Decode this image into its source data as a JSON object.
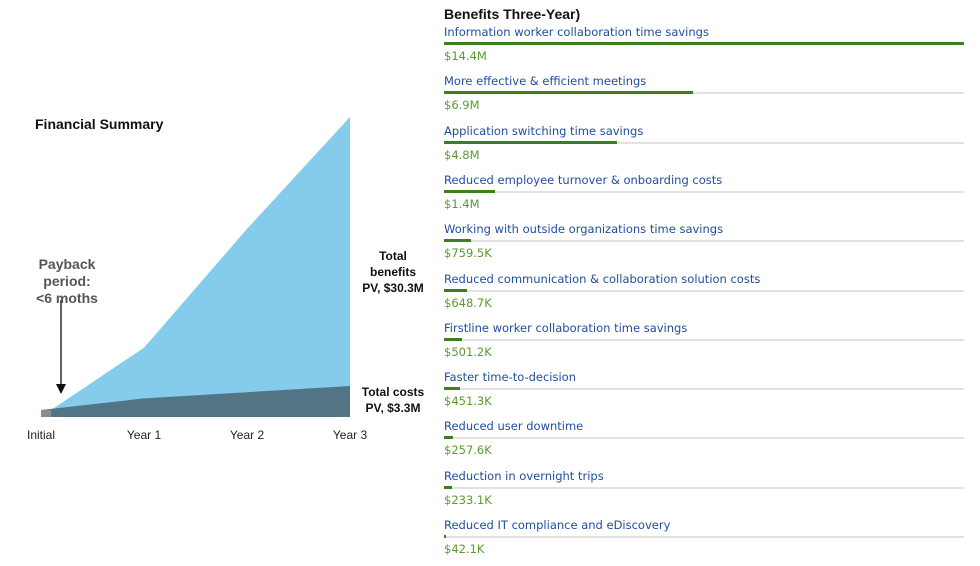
{
  "left_panel": {
    "title": "Financial Summary",
    "payback_line1": "Payback",
    "payback_line2": "period:",
    "payback_line3": "<6 moths",
    "benefits_line1": "Total",
    "benefits_line2": "benefits",
    "benefits_line3": "PV, $30.3M",
    "costs_line1": "Total costs",
    "costs_line2": "PV, $3.3M",
    "x_ticks": [
      "Initial",
      "Year 1",
      "Year 2",
      "Year 3"
    ],
    "colors": {
      "benefits": "#85CBEB",
      "costs": "#527485",
      "initial": "#8c8c8c"
    }
  },
  "right_panel": {
    "title": "Benefits Three-Year)",
    "bar_color": "#3F7E1F",
    "label_color": "#1F4E9C",
    "value_color": "#5B9A2E",
    "items": [
      {
        "label": "Information worker collaboration time savings",
        "value": "$14.4M"
      },
      {
        "label": "More effective & efficient meetings",
        "value": "$6.9M"
      },
      {
        "label": "Application switching time savings",
        "value": "$4.8M"
      },
      {
        "label": "Reduced employee turnover & onboarding costs",
        "value": "$1.4M"
      },
      {
        "label": "Working with outside organizations time savings",
        "value": "$759.5K"
      },
      {
        "label": "Reduced communication & collaboration solution costs",
        "value": "$648.7K"
      },
      {
        "label": "Firstline worker collaboration time savings",
        "value": "$501.2K"
      },
      {
        "label": "Faster time-to-decision",
        "value": "$451.3K"
      },
      {
        "label": "Reduced user downtime",
        "value": "$257.6K"
      },
      {
        "label": "Reduction in overnight trips",
        "value": "$233.1K"
      },
      {
        "label": "Reduced IT compliance and eDiscovery",
        "value": "$42.1K"
      }
    ]
  },
  "chart_data": [
    {
      "type": "area",
      "title": "Financial Summary",
      "categories": [
        "Initial",
        "Year 1",
        "Year 2",
        "Year 3"
      ],
      "series": [
        {
          "name": "Total benefits (cumulative)",
          "values": [
            0,
            7.0,
            19.0,
            30.3
          ]
        },
        {
          "name": "Total costs (cumulative)",
          "values": [
            0.2,
            1.7,
            2.5,
            3.3
          ]
        }
      ],
      "annotations": [
        "Payback period: <6 moths",
        "Total benefits PV, $30.3M",
        "Total costs PV, $3.3M"
      ],
      "xlabel": "",
      "ylabel": "",
      "grid": false
    },
    {
      "type": "bar",
      "orientation": "horizontal",
      "title": "Benefits Three-Year)",
      "categories": [
        "Information worker collaboration time savings",
        "More effective & efficient meetings",
        "Application switching time savings",
        "Reduced employee turnover & onboarding costs",
        "Working with outside organizations time savings",
        "Reduced communication & collaboration solution costs",
        "Firstline worker collaboration time savings",
        "Faster time-to-decision",
        "Reduced user downtime",
        "Reduction in overnight trips",
        "Reduced IT compliance and eDiscovery"
      ],
      "values": [
        14400000,
        6900000,
        4800000,
        1400000,
        759500,
        648700,
        501200,
        451300,
        257600,
        233100,
        42100
      ],
      "value_labels": [
        "$14.4M",
        "$6.9M",
        "$4.8M",
        "$1.4M",
        "$759.5K",
        "$648.7K",
        "$501.2K",
        "$451.3K",
        "$257.6K",
        "$233.1K",
        "$42.1K"
      ]
    }
  ]
}
